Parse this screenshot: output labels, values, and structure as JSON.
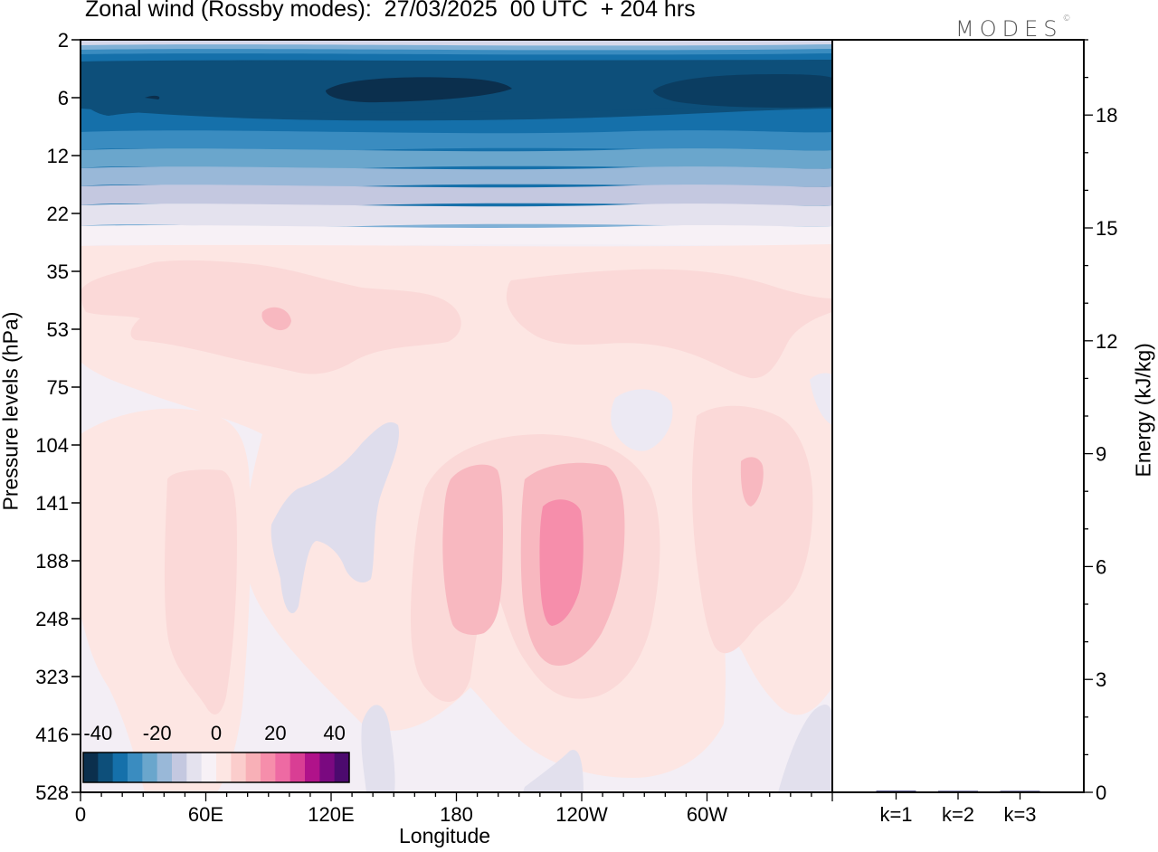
{
  "title": "Zonal wind (Rossby modes):  27/03/2025  00 UTC  + 204 hrs",
  "brand": {
    "text": "MODES",
    "mark": "©"
  },
  "chart_data": [
    {
      "type": "heatmap",
      "xlabel": "Longitude",
      "ylabel": "Pressure levels (hPa)",
      "x_ticks": [
        "0",
        "60E",
        "120E",
        "180",
        "120W",
        "60W"
      ],
      "y_ticks": [
        "2",
        "6",
        "12",
        "22",
        "35",
        "53",
        "75",
        "104",
        "141",
        "188",
        "248",
        "323",
        "416",
        "528"
      ],
      "colorbar": {
        "tick_labels": [
          "-40",
          "-20",
          "0",
          "20",
          "40"
        ],
        "range": [
          -45,
          45
        ],
        "colors": [
          "#0b2f4d",
          "#0d4f7a",
          "#1570aa",
          "#3a8cc0",
          "#6aa6cc",
          "#99b8d8",
          "#c4c8e0",
          "#e4e2ee",
          "#f7f1f6",
          "#fde6e3",
          "#fbcdcc",
          "#f8b0b7",
          "#f68eab",
          "#ee6aa3",
          "#d93e94",
          "#b0128a",
          "#7a0980",
          "#4c0a6e"
        ]
      },
      "features": [
        {
          "name": "stratospheric easterly jet core",
          "value": -42,
          "lon_range": [
            0,
            360
          ],
          "level_range": [
            2,
            14
          ]
        },
        {
          "name": "easterly jet maximum",
          "value": -45,
          "lon_range": [
            110,
            205
          ],
          "level_range": [
            5,
            7
          ]
        },
        {
          "name": "westerly band",
          "value": 8,
          "lon_range": [
            0,
            360
          ],
          "level_range": [
            30,
            75
          ]
        },
        {
          "name": "westerly maximum",
          "value": 26,
          "lon_range": [
            220,
            245
          ],
          "level_range": [
            130,
            250
          ]
        },
        {
          "name": "westerly maximum",
          "value": 18,
          "lon_range": [
            172,
            200
          ],
          "level_range": [
            110,
            300
          ]
        },
        {
          "name": "westerly maximum",
          "value": 15,
          "lon_range": [
            305,
            330
          ],
          "level_range": [
            115,
            160
          ]
        }
      ]
    },
    {
      "type": "bar",
      "ylabel": "Energy (kJ/kg)",
      "categories": [
        "k=1",
        "k=2",
        "k=3"
      ],
      "values": [
        0.04,
        0.02,
        0.03
      ],
      "ylim": [
        0,
        20
      ],
      "y_ticks": [
        "0",
        "3",
        "6",
        "9",
        "12",
        "15",
        "18"
      ],
      "bar_color": "#1a1a66"
    }
  ]
}
